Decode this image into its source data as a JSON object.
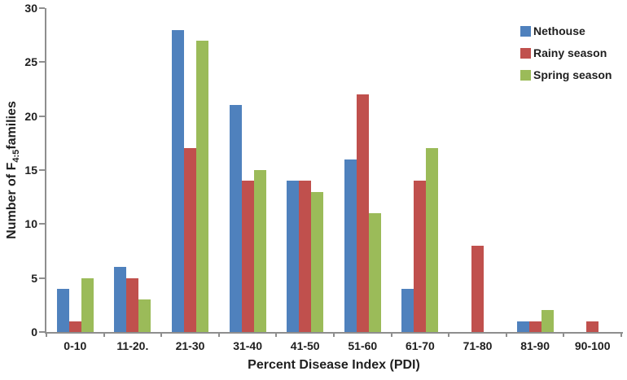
{
  "figure": {
    "background": "#ffffff",
    "axis_color": "#8e8e8e",
    "text_color": "#202020"
  },
  "chart_data": {
    "type": "bar",
    "title": "",
    "xlabel": "Percent Disease Index (PDI)",
    "ylabel": "Number of F4:5 families",
    "ylabel_rich": {
      "prefix": "Number of F",
      "subscript": "4:5",
      "suffix": "families"
    },
    "categories": [
      "0-10",
      "11-20.",
      "21-30",
      "31-40",
      "41-50",
      "51-60",
      "61-70",
      "71-80",
      "81-90",
      "90-100"
    ],
    "series": [
      {
        "name": "Nethouse",
        "color": "#4F81BD",
        "values": [
          4,
          6,
          28,
          21,
          14,
          16,
          4,
          0,
          1,
          0
        ]
      },
      {
        "name": "Rainy season",
        "color": "#C0504D",
        "values": [
          1,
          5,
          17,
          14,
          14,
          22,
          14,
          8,
          1,
          1
        ]
      },
      {
        "name": "Spring season",
        "color": "#9BBB59",
        "values": [
          5,
          3,
          27,
          15,
          13,
          11,
          17,
          0,
          2,
          0
        ]
      }
    ],
    "ylim": [
      0,
      30
    ],
    "yticks": [
      0,
      5,
      10,
      15,
      20,
      25,
      30
    ],
    "grid": false,
    "legend_position": "top-right"
  }
}
